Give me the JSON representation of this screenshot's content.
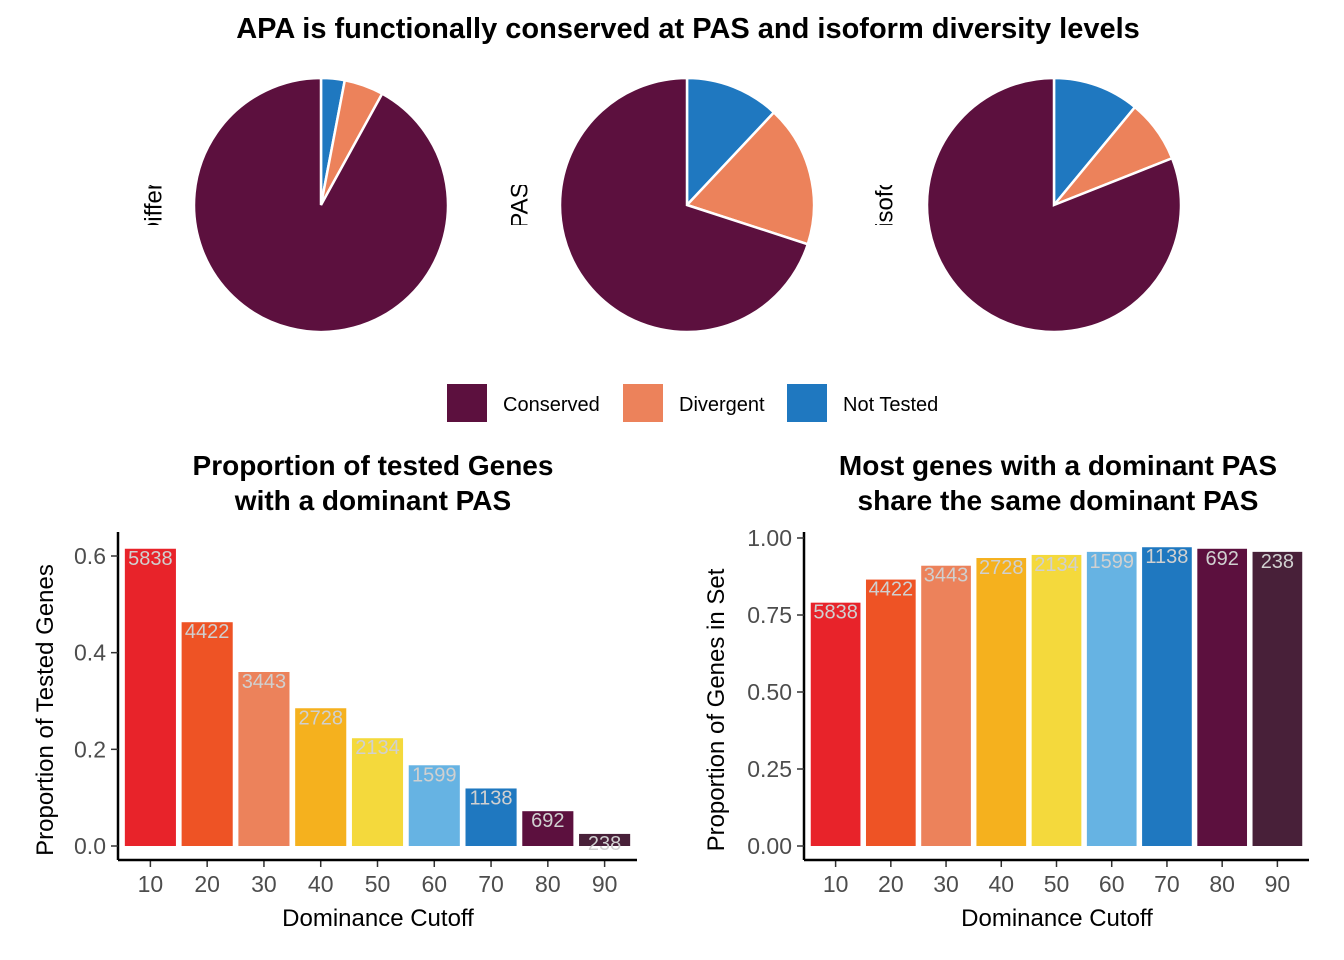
{
  "figure": {
    "title": "APA is functionally conserved at PAS and isoform diversity levels"
  },
  "colors": {
    "Conserved": "#5c103e",
    "Divergent": "#ec825b",
    "Not Tested": "#1f78c0",
    "bars": [
      "#e8232a",
      "#ee5325",
      "#ec825b",
      "#f5b11e",
      "#f4d93c",
      "#66b3e3",
      "#1f78c0",
      "#5c103e",
      "#482039"
    ],
    "bar_label": "#d0d0d0"
  },
  "legend": {
    "items": [
      "Conserved",
      "Divergent",
      "Not Tested"
    ]
  },
  "chart_data": [
    {
      "type": "pie",
      "ylabel": "PAS Differences",
      "categories": [
        "Conserved",
        "Divergent",
        "Not Tested"
      ],
      "values": [
        0.92,
        0.05,
        0.03
      ]
    },
    {
      "type": "pie",
      "ylabel": "Genes with PAS Differneces",
      "categories": [
        "Conserved",
        "Divergent",
        "Not Tested"
      ],
      "values": [
        0.7,
        0.18,
        0.12
      ]
    },
    {
      "type": "pie",
      "ylabel": "Differences isoform diversity",
      "categories": [
        "Conserved",
        "Divergent",
        "Not Tested"
      ],
      "values": [
        0.81,
        0.08,
        0.11
      ]
    },
    {
      "type": "bar",
      "title": [
        "Proportion of tested Genes",
        "with a dominant PAS"
      ],
      "xlabel": "Dominance Cutoff",
      "ylabel": "Proportion of Tested Genes",
      "categories": [
        "10",
        "20",
        "30",
        "40",
        "50",
        "60",
        "70",
        "80",
        "90"
      ],
      "values": [
        0.615,
        0.463,
        0.36,
        0.285,
        0.223,
        0.167,
        0.119,
        0.072,
        0.025
      ],
      "labels": [
        "5838",
        "4422",
        "3443",
        "2728",
        "2134",
        "1599",
        "1138",
        "692",
        "238"
      ],
      "ylim": [
        0,
        0.64
      ],
      "yticks": [
        "0.0",
        "0.2",
        "0.4",
        "0.6"
      ],
      "ytick_values": [
        0,
        0.2,
        0.4,
        0.6
      ],
      "grid": false
    },
    {
      "type": "bar",
      "title": [
        "Most genes with a dominant PAS",
        "share the same dominant PAS"
      ],
      "xlabel": "Dominance Cutoff",
      "ylabel": "Proportion of Genes in Set",
      "categories": [
        "10",
        "20",
        "30",
        "40",
        "50",
        "60",
        "70",
        "80",
        "90"
      ],
      "values": [
        0.79,
        0.865,
        0.91,
        0.935,
        0.945,
        0.955,
        0.97,
        0.965,
        0.955
      ],
      "labels": [
        "5838",
        "4422",
        "3443",
        "2728",
        "2134",
        "1599",
        "1138",
        "692",
        "238"
      ],
      "ylim": [
        0,
        1.0
      ],
      "yticks": [
        "0.00",
        "0.25",
        "0.50",
        "0.75",
        "1.00"
      ],
      "ytick_values": [
        0,
        0.25,
        0.5,
        0.75,
        1.0
      ],
      "grid": false
    }
  ]
}
